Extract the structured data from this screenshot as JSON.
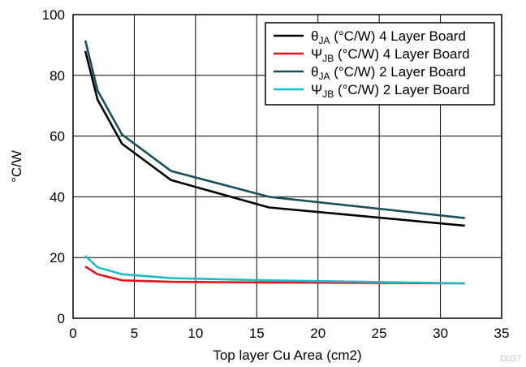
{
  "chart_data": {
    "type": "line",
    "title": "",
    "xlabel": "Top layer Cu Area (cm2)",
    "ylabel": "°C/W",
    "xlim": [
      0,
      35
    ],
    "ylim": [
      0,
      100
    ],
    "xticks": [
      0,
      5,
      10,
      15,
      20,
      25,
      30,
      35
    ],
    "yticks": [
      0,
      20,
      40,
      60,
      80,
      100
    ],
    "grid": true,
    "legend_position": "top-right",
    "watermark": "D037",
    "series": [
      {
        "name": "θJA (°C/W) 4 Layer Board",
        "symbol": "θ",
        "sub": "JA",
        "rest": " (°C/W) 4 Layer Board",
        "color": "#000000",
        "x": [
          1,
          2,
          4,
          8,
          16,
          32
        ],
        "y": [
          88,
          72,
          57.5,
          45.5,
          36.5,
          30.5
        ]
      },
      {
        "name": "ΨJB (°C/W) 4 Layer Board",
        "symbol": "Ψ",
        "sub": "JB",
        "rest": " (°C/W) 4 Layer Board",
        "color": "#e8101a",
        "x": [
          1,
          2,
          4,
          8,
          16,
          32
        ],
        "y": [
          17,
          14.5,
          12.5,
          12,
          11.8,
          11.5
        ]
      },
      {
        "name": "θJA (°C/W) 2 Layer Board",
        "symbol": "θ",
        "sub": "JA",
        "rest": " (°C/W) 2 Layer Board",
        "color": "#1b4f5a",
        "x": [
          1,
          2,
          4,
          8,
          16,
          32
        ],
        "y": [
          91.5,
          75,
          60.5,
          48.5,
          40,
          33
        ]
      },
      {
        "name": "ΨJB (°C/W) 2 Layer Board",
        "symbol": "Ψ",
        "sub": "JB",
        "rest": " (°C/W) 2 Layer Board",
        "color": "#1fbcc8",
        "x": [
          1,
          2,
          4,
          8,
          16,
          32
        ],
        "y": [
          20.5,
          16.8,
          14.5,
          13.2,
          12.5,
          11.5
        ]
      }
    ]
  }
}
